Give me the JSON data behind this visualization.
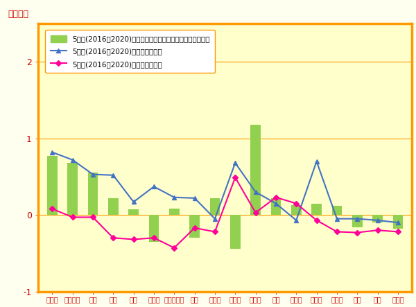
{
  "categories": [
    "鶴見区",
    "神奈川区",
    "西区",
    "中区",
    "南区",
    "港南区",
    "保土ケ谷区",
    "旭区",
    "磯子区",
    "金沢区",
    "港北区",
    "緑区",
    "青葉区",
    "都筑区",
    "戸塚区",
    "栄区",
    "泉区",
    "瀬谷区"
  ],
  "bar_values": [
    0.77,
    0.68,
    0.55,
    0.22,
    0.07,
    -0.35,
    0.08,
    -0.3,
    0.22,
    -0.44,
    1.18,
    0.22,
    0.13,
    0.15,
    0.12,
    -0.16,
    -0.1,
    -0.18
  ],
  "social_values": [
    0.82,
    0.72,
    0.53,
    0.52,
    0.17,
    0.37,
    0.23,
    0.22,
    -0.05,
    0.68,
    0.3,
    0.15,
    -0.07,
    0.7,
    -0.05,
    -0.05,
    -0.07,
    -0.1
  ],
  "natural_values": [
    0.08,
    -0.03,
    -0.03,
    -0.3,
    -0.32,
    -0.3,
    -0.43,
    -0.17,
    -0.22,
    0.49,
    0.03,
    0.23,
    0.15,
    -0.07,
    -0.22,
    -0.23,
    -0.2,
    -0.22
  ],
  "bar_color": "#92d050",
  "social_color": "#4472c4",
  "natural_color": "#ff0099",
  "background_color": "#ffffcc",
  "fig_background_color": "#fffff0",
  "border_color": "#ff9900",
  "legend_bg": "#ffffff",
  "ylim": [
    -1.0,
    2.5
  ],
  "yticks": [
    -1,
    0,
    1,
    2
  ],
  "ylabel": "（万人）",
  "legend_bar": "5年間(2016～2020)の人口増減合計（社会増減＋自然増減）",
  "legend_social": "5年間(2016～2020)の社会増減合計",
  "legend_natural": "5年間(2016～2020)の自然増減合計",
  "grid_color": "#ff9900",
  "label_color": "#cc0000",
  "legend_edge_color": "#ff9900"
}
